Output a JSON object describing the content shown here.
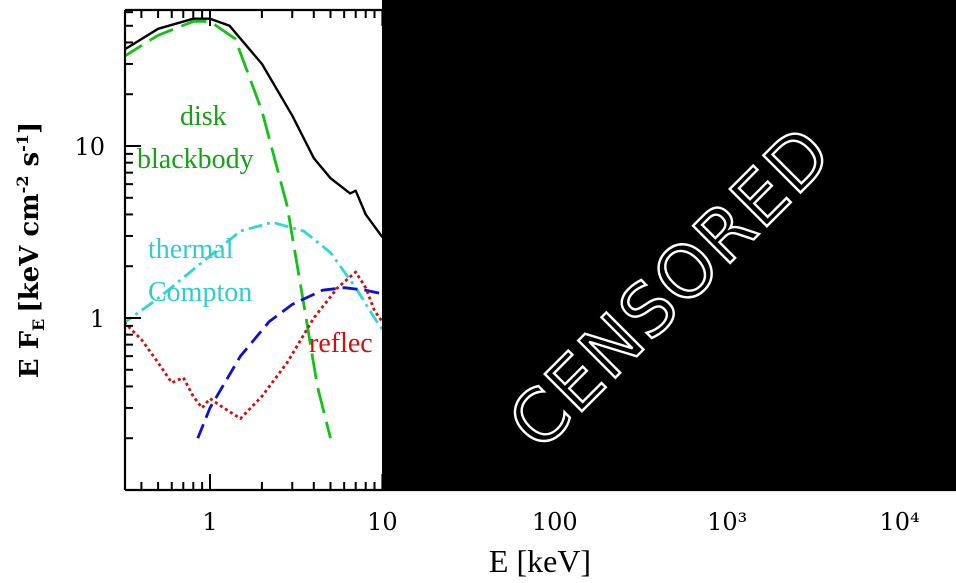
{
  "chart_data": {
    "type": "line",
    "title": "",
    "xlabel": "E [keV]",
    "ylabel": "E F",
    "ylabel_subscript": "E",
    "ylabel_units": "[keV cm",
    "ylabel_units_exp1": "-2",
    "ylabel_units_mid": " s",
    "ylabel_units_exp2": "-1",
    "ylabel_units_end": "]",
    "xscale": "log",
    "yscale": "log",
    "xlim": [
      0.3,
      30000
    ],
    "ylim": [
      0.2,
      80
    ],
    "x_ticks": [
      {
        "value": 1,
        "label": "1"
      },
      {
        "value": 10,
        "label": "10"
      },
      {
        "value": 100,
        "label": "100"
      },
      {
        "value": 1000,
        "label": "10³"
      },
      {
        "value": 10000,
        "label": "10⁴"
      }
    ],
    "y_ticks": [
      {
        "value": 1,
        "label": "1"
      },
      {
        "value": 10,
        "label": "10"
      }
    ],
    "series": [
      {
        "key": "total",
        "color": "#000000",
        "style": "solid",
        "points": [
          [
            0.3,
            35
          ],
          [
            0.5,
            48
          ],
          [
            0.8,
            55
          ],
          [
            1.0,
            55
          ],
          [
            1.3,
            50
          ],
          [
            2.0,
            30
          ],
          [
            3.0,
            15
          ],
          [
            4.0,
            8.5
          ],
          [
            5.0,
            6.5
          ],
          [
            6.5,
            5.3
          ],
          [
            7.0,
            5.5
          ],
          [
            8.0,
            4.0
          ],
          [
            10.0,
            2.95
          ]
        ]
      },
      {
        "key": "disk",
        "color": "#16c016",
        "style": "longdash",
        "points": [
          [
            0.3,
            32
          ],
          [
            0.5,
            44
          ],
          [
            0.8,
            53
          ],
          [
            1.0,
            53
          ],
          [
            1.4,
            42
          ],
          [
            2.0,
            16
          ],
          [
            2.8,
            4.5
          ],
          [
            3.5,
            1.2
          ],
          [
            4.2,
            0.4
          ],
          [
            5.0,
            0.2
          ]
        ]
      },
      {
        "key": "compton",
        "color": "#33d6d6",
        "style": "dashdot",
        "points": [
          [
            0.3,
            0.9
          ],
          [
            0.5,
            1.3
          ],
          [
            1.0,
            2.3
          ],
          [
            1.5,
            3.2
          ],
          [
            2.3,
            3.6
          ],
          [
            3.5,
            3.2
          ],
          [
            5.0,
            2.4
          ],
          [
            7.0,
            1.5
          ],
          [
            9.0,
            1.0
          ],
          [
            10.0,
            0.86
          ]
        ]
      },
      {
        "key": "blue",
        "color": "#1010d0",
        "style": "dash",
        "points": [
          [
            0.85,
            0.2
          ],
          [
            1.0,
            0.3
          ],
          [
            1.5,
            0.6
          ],
          [
            2.2,
            0.95
          ],
          [
            3.0,
            1.2
          ],
          [
            4.5,
            1.45
          ],
          [
            6.0,
            1.5
          ],
          [
            8.0,
            1.45
          ],
          [
            10.0,
            1.38
          ]
        ]
      },
      {
        "key": "reflection",
        "color": "#d01010",
        "style": "dotted",
        "points": [
          [
            0.3,
            1.0
          ],
          [
            0.4,
            0.75
          ],
          [
            0.5,
            0.55
          ],
          [
            0.6,
            0.42
          ],
          [
            0.7,
            0.45
          ],
          [
            0.8,
            0.35
          ],
          [
            0.9,
            0.3
          ],
          [
            1.0,
            0.34
          ],
          [
            1.2,
            0.3
          ],
          [
            1.5,
            0.26
          ],
          [
            2.0,
            0.35
          ],
          [
            2.8,
            0.55
          ],
          [
            4.0,
            1.0
          ],
          [
            5.5,
            1.5
          ],
          [
            7.0,
            1.85
          ],
          [
            8.0,
            1.5
          ],
          [
            9.0,
            1.1
          ],
          [
            10.0,
            0.95
          ]
        ]
      }
    ],
    "annotations": [
      {
        "key": "disk1",
        "text": "disk",
        "color": "#16a016"
      },
      {
        "key": "disk2",
        "text": "blackbody",
        "color": "#16a016"
      },
      {
        "key": "comp1",
        "text": "thermal",
        "color": "#33cccc"
      },
      {
        "key": "comp2",
        "text": "Compton",
        "color": "#33cccc"
      },
      {
        "key": "refl",
        "text": "reflec",
        "color": "#d01010"
      }
    ],
    "censor": {
      "text": "CENSORED",
      "color": "#000000"
    }
  }
}
